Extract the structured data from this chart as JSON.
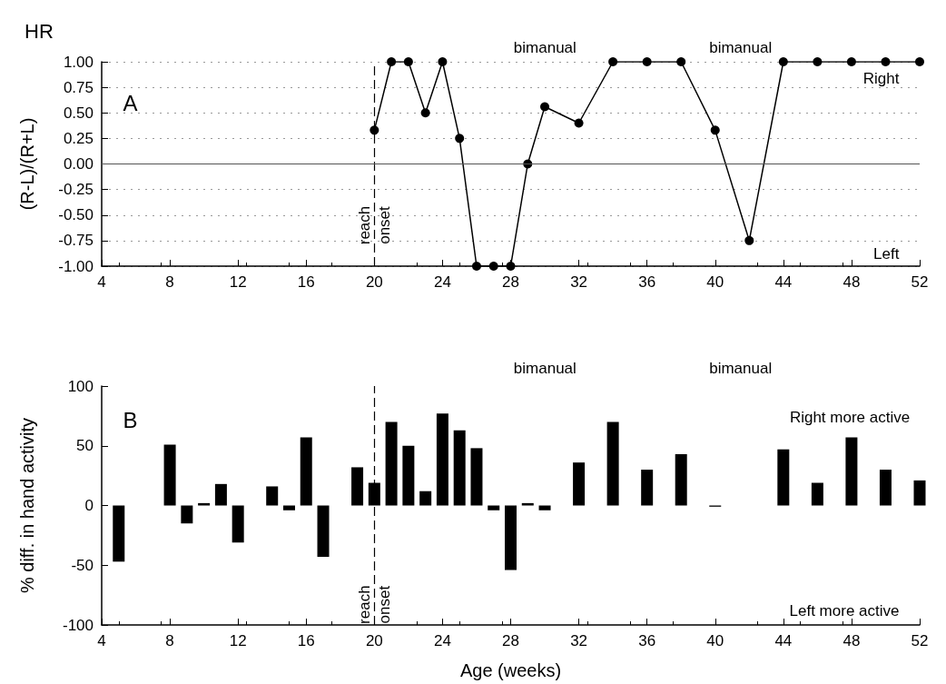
{
  "chart_data": [
    {
      "type": "line",
      "title": "HR",
      "ylabel": "(R-L)/(R+L)",
      "marker": "circle",
      "line_style": "solid",
      "grid": "y",
      "series": [
        {
          "color": "#000000",
          "x": [
            20,
            21,
            22,
            23,
            24,
            25,
            26,
            27,
            28,
            29,
            30,
            32,
            34,
            36,
            38,
            40,
            42,
            44,
            46,
            48,
            50,
            52
          ],
          "values": [
            0.33,
            1,
            1,
            0.5,
            1,
            0.25,
            -1,
            -1,
            -1,
            0,
            0.56,
            0.4,
            1,
            1,
            1,
            0.33,
            -0.75,
            1,
            1,
            1,
            1,
            1
          ]
        }
      ],
      "xlim": [
        4,
        52
      ],
      "xticks": [
        4,
        8,
        12,
        16,
        20,
        24,
        28,
        32,
        36,
        40,
        44,
        48,
        52
      ],
      "ylim": [
        -1,
        1
      ],
      "yticks": [
        {
          "value": -1,
          "label": "-1.00"
        },
        {
          "value": -0.75,
          "label": "-0.75"
        },
        {
          "value": -0.5,
          "label": "-0.50"
        },
        {
          "value": -0.25,
          "label": "-0.25"
        },
        {
          "value": 0,
          "label": "0.00"
        },
        {
          "value": 0.25,
          "label": "0.25"
        },
        {
          "value": 0.5,
          "label": "0.50"
        },
        {
          "value": 0.75,
          "label": "0.75"
        },
        {
          "value": 1,
          "label": "1.00"
        }
      ],
      "ref_lines": [
        {
          "axis": "x",
          "value": 20,
          "color": "#000000",
          "line_style": "dashed"
        },
        {
          "axis": "y",
          "value": 0,
          "color": "#555555",
          "line_style": "solid"
        }
      ],
      "annotations": [
        "A",
        "Right",
        "Left",
        "reach",
        "onset",
        "bimanual",
        "bimanual"
      ]
    },
    {
      "type": "bar",
      "xlabel": "Age (weeks)",
      "ylabel": "% diff. in hand activity",
      "grid": false,
      "series": [
        {
          "color": "#000000",
          "x": [
            5,
            8,
            9,
            10,
            11,
            12,
            14,
            15,
            16,
            17,
            19,
            20,
            21,
            22,
            23,
            24,
            25,
            26,
            27,
            28,
            29,
            30,
            32,
            34,
            36,
            38,
            40,
            42,
            44,
            46,
            48,
            50,
            52
          ],
          "values": [
            -47,
            51,
            -15,
            2,
            18,
            -31,
            16,
            -4,
            57,
            -43,
            32,
            19,
            70,
            50,
            12,
            77,
            63,
            48,
            -4,
            -54,
            2,
            -4,
            36,
            70,
            30,
            43,
            -1,
            0,
            47,
            19,
            57,
            30,
            21
          ]
        }
      ],
      "xlim": [
        4,
        52
      ],
      "xticks": [
        4,
        8,
        12,
        16,
        20,
        24,
        28,
        32,
        36,
        40,
        44,
        48,
        52
      ],
      "ylim": [
        -100,
        100
      ],
      "yticks": [
        -100,
        -50,
        0,
        50,
        100
      ],
      "ref_lines": [
        {
          "axis": "x",
          "value": 20,
          "color": "#000000",
          "line_style": "dashed"
        }
      ],
      "annotations": [
        "B",
        "Right more active",
        "Left more active",
        "reach",
        "onset",
        "bimanual",
        "bimanual"
      ]
    }
  ]
}
